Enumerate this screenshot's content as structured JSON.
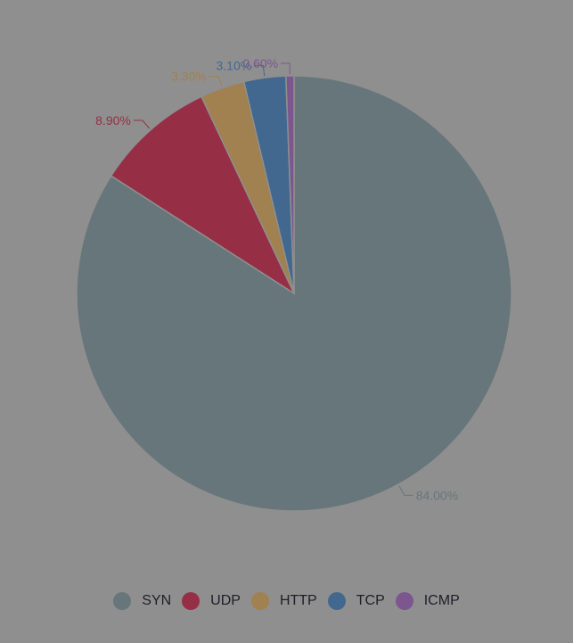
{
  "chart_data": {
    "type": "pie",
    "title": "",
    "categories": [
      "SYN",
      "UDP",
      "HTTP",
      "TCP",
      "ICMP"
    ],
    "values": [
      84.0,
      8.9,
      3.3,
      3.1,
      0.6
    ],
    "labels": [
      "84.00%",
      "8.90%",
      "3.30%",
      "3.10%",
      "0.60%"
    ],
    "colors": [
      "#67767b",
      "#962f45",
      "#a0814f",
      "#42688f",
      "#7c578f"
    ],
    "legend_position": "bottom",
    "start_angle_deg": 0,
    "direction": "clockwise"
  },
  "legend": {
    "items": [
      {
        "label": "SYN",
        "color": "#67767b"
      },
      {
        "label": "UDP",
        "color": "#962f45"
      },
      {
        "label": "HTTP",
        "color": "#a0814f"
      },
      {
        "label": "TCP",
        "color": "#42688f"
      },
      {
        "label": "ICMP",
        "color": "#7c578f"
      }
    ]
  }
}
